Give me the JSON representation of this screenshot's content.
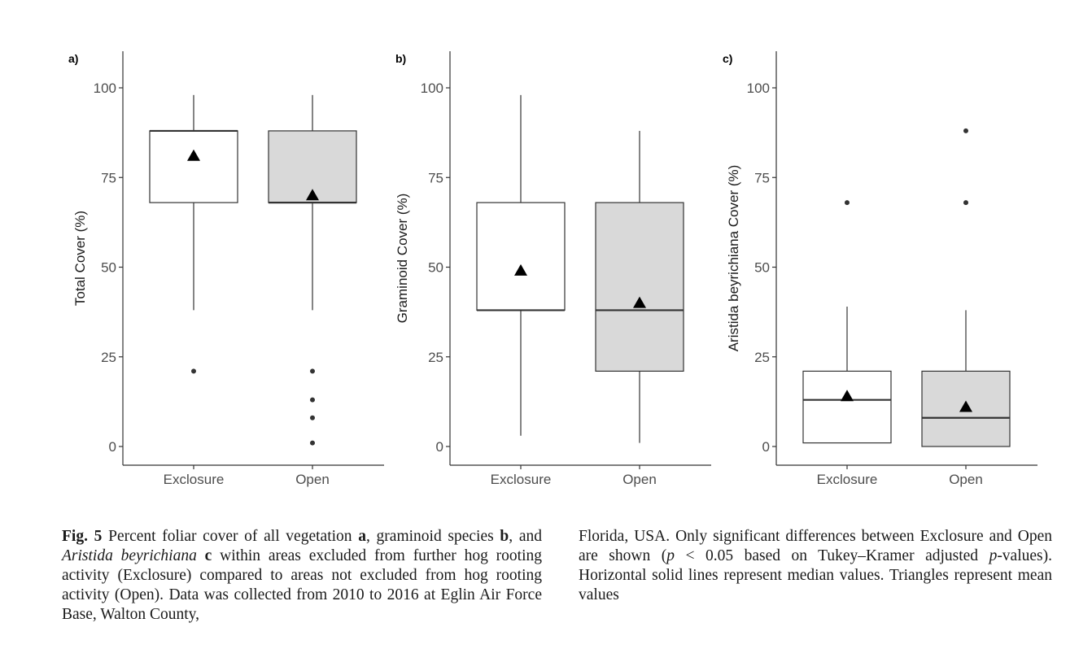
{
  "chart_data": [
    {
      "type": "box",
      "panel": "a)",
      "ylabel": "Total Cover (%)",
      "ylim": [
        -5,
        110
      ],
      "yticks": [
        "0",
        "25",
        "50",
        "75",
        "100"
      ],
      "categories": [
        "Exclosure",
        "Open"
      ],
      "boxes": [
        {
          "category": "Exclosure",
          "min": 38,
          "q1": 68,
          "median": 88,
          "q3": 88,
          "max": 98,
          "mean": 81,
          "outliers": [
            21
          ],
          "fill": "#ffffff"
        },
        {
          "category": "Open",
          "min": 38,
          "q1": 68,
          "median": 68,
          "q3": 88,
          "max": 98,
          "mean": 70,
          "outliers": [
            21,
            13,
            8,
            1
          ],
          "fill": "#d9d9d9"
        }
      ]
    },
    {
      "type": "box",
      "panel": "b)",
      "ylabel": "Graminoid Cover (%)",
      "ylim": [
        -5,
        110
      ],
      "yticks": [
        "0",
        "25",
        "50",
        "75",
        "100"
      ],
      "categories": [
        "Exclosure",
        "Open"
      ],
      "boxes": [
        {
          "category": "Exclosure",
          "min": 3,
          "q1": 38,
          "median": 38,
          "q3": 68,
          "max": 98,
          "mean": 49,
          "outliers": [],
          "fill": "#ffffff"
        },
        {
          "category": "Open",
          "min": 1,
          "q1": 21,
          "median": 38,
          "q3": 68,
          "max": 88,
          "mean": 40,
          "outliers": [],
          "fill": "#d9d9d9"
        }
      ]
    },
    {
      "type": "box",
      "panel": "c)",
      "ylabel": "Aristida beyrichiana Cover (%)",
      "ylim": [
        -5,
        110
      ],
      "yticks": [
        "0",
        "25",
        "50",
        "75",
        "100"
      ],
      "categories": [
        "Exclosure",
        "Open"
      ],
      "boxes": [
        {
          "category": "Exclosure",
          "min": 1,
          "q1": 1,
          "median": 13,
          "q3": 21,
          "max": 39,
          "mean": 14,
          "outliers": [
            68
          ],
          "fill": "#ffffff"
        },
        {
          "category": "Open",
          "min": 0,
          "q1": 0,
          "median": 8,
          "q3": 21,
          "max": 38,
          "mean": 11,
          "outliers": [
            68,
            88
          ],
          "fill": "#d9d9d9"
        }
      ]
    }
  ],
  "caption": {
    "fig_label": "Fig. 5",
    "seg1": "  Percent foliar cover of all vegetation ",
    "a": "a",
    "seg2": ", graminoid species ",
    "b": "b",
    "seg3": ", and ",
    "species": "Aristida beyrichiana",
    "seg4": " ",
    "c": "c",
    "seg5": " within areas excluded from further hog rooting activity (Exclosure) compared to areas not excluded from hog rooting activity (Open). Data was collected from 2010 to 2016 at Eglin Air Force Base, Walton County, Florida, USA. Only significant differences between Exclosure and Open are shown (",
    "p1": "p",
    "seg6": " < 0.05 based on Tukey–Kramer adjusted ",
    "p2": "p",
    "seg7": "-values). Horizontal solid lines represent median values. Triangles represent mean values"
  },
  "caption_right": "Florida, USA. Only significant differences between Exclosure and Open are shown (p < 0.05 based on Tukey–Kramer adjusted p-values). Horizontal solid lines represent median values. Triangles represent mean values"
}
